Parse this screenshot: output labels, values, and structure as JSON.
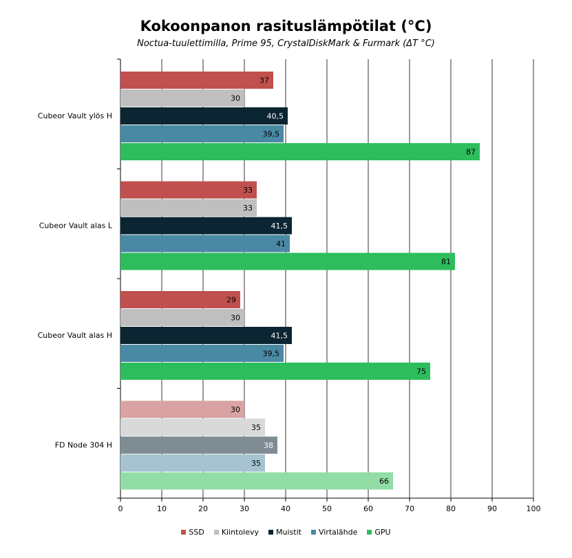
{
  "chart_data": {
    "type": "bar",
    "orientation": "horizontal",
    "title": "Kokoonpanon rasituslämpötilat (°C)",
    "subtitle": "Noctua-tuulettimilla, Prime 95, CrystalDiskMark & Furmark (ΔT °C)",
    "xlim": [
      0,
      100
    ],
    "xticks": [
      0,
      10,
      20,
      30,
      40,
      50,
      60,
      70,
      80,
      90,
      100
    ],
    "grid": true,
    "legend_position": "bottom",
    "categories": [
      "Cubeor Vault ylös H",
      "Cubeor Vault alas L",
      "Cubeor Vault alas H",
      "FD Node 304 H"
    ],
    "series": [
      {
        "name": "SSD",
        "color": "#c0504d",
        "faded_color": "#d9a3a3",
        "values": [
          37,
          33,
          29,
          30
        ],
        "labels": [
          "37",
          "33",
          "29",
          "30"
        ]
      },
      {
        "name": "Kiintolevy",
        "color": "#bfbfbf",
        "faded_color": "#d9d9d9",
        "values": [
          30,
          33,
          30,
          35
        ],
        "labels": [
          "30",
          "33",
          "30",
          "35"
        ]
      },
      {
        "name": "Muistit",
        "color": "#0b2532",
        "faded_color": "#7f8c93",
        "values": [
          40.5,
          41.5,
          41.5,
          38
        ],
        "labels": [
          "40,5",
          "41,5",
          "41,5",
          "38"
        ]
      },
      {
        "name": "Virtalähde",
        "color": "#4a89a3",
        "faded_color": "#a5c3d0",
        "values": [
          39.5,
          41,
          39.5,
          35
        ],
        "labels": [
          "39,5",
          "41",
          "39,5",
          "35"
        ]
      },
      {
        "name": "GPU",
        "color": "#2dbd5c",
        "faded_color": "#92dca6",
        "values": [
          87,
          81,
          75,
          66
        ],
        "labels": [
          "87",
          "81",
          "75",
          "66"
        ]
      }
    ],
    "faded_category": "FD Node 304 H"
  }
}
